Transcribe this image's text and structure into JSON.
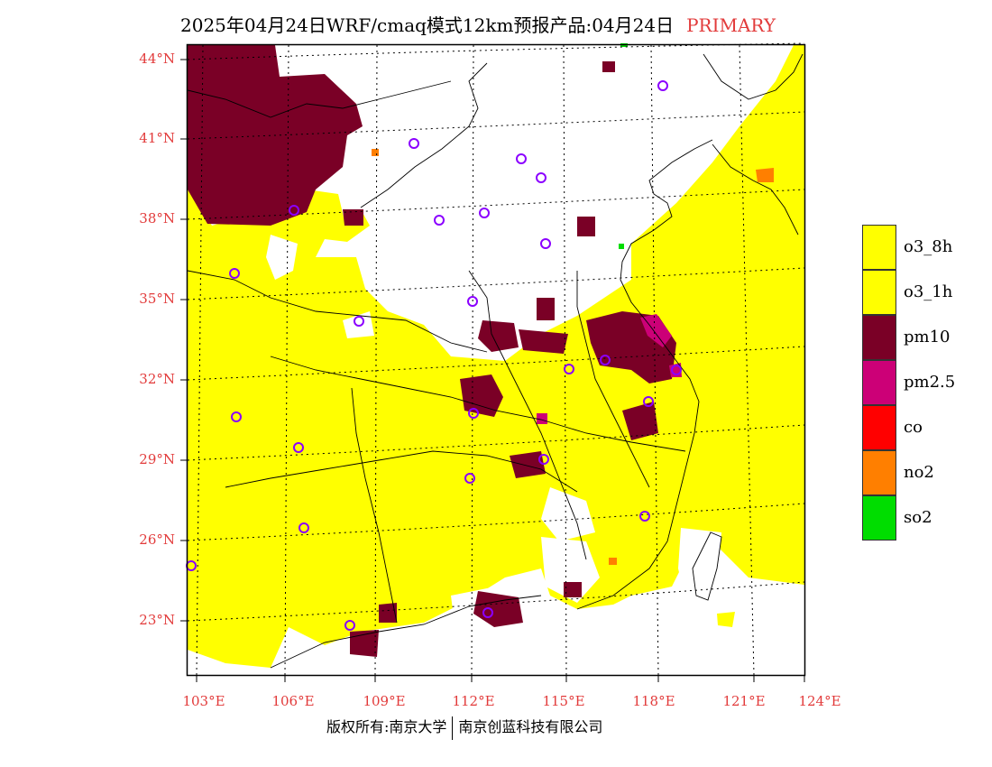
{
  "title": {
    "text": "2025年04月24日WRF/cmaq模式12km预报产品:04月24日",
    "tag": "PRIMARY"
  },
  "map": {
    "lat_labels": [
      "44°N",
      "41°N",
      "38°N",
      "35°N",
      "32°N",
      "29°N",
      "26°N",
      "23°N"
    ],
    "lon_labels": [
      "103°E",
      "106°E",
      "109°E",
      "112°E",
      "115°E",
      "118°E",
      "121°E",
      "124°E"
    ],
    "colors": {
      "background": "#ffffff",
      "frame": "#000000",
      "label": "#e23b3b",
      "circle": "#8b00ff"
    }
  },
  "legend": {
    "items": [
      {
        "label": "o3_8h",
        "color": "#ffff00"
      },
      {
        "label": "o3_1h",
        "color": "#ffff00"
      },
      {
        "label": "pm10",
        "color": "#7a0026"
      },
      {
        "label": "pm2.5",
        "color": "#cc0077"
      },
      {
        "label": "co",
        "color": "#ff0000"
      },
      {
        "label": "no2",
        "color": "#ff7f00"
      },
      {
        "label": "so2",
        "color": "#00dd00"
      }
    ]
  },
  "footer": {
    "left": "版权所有:南京大学",
    "right": "南京创蓝科技有限公司"
  }
}
